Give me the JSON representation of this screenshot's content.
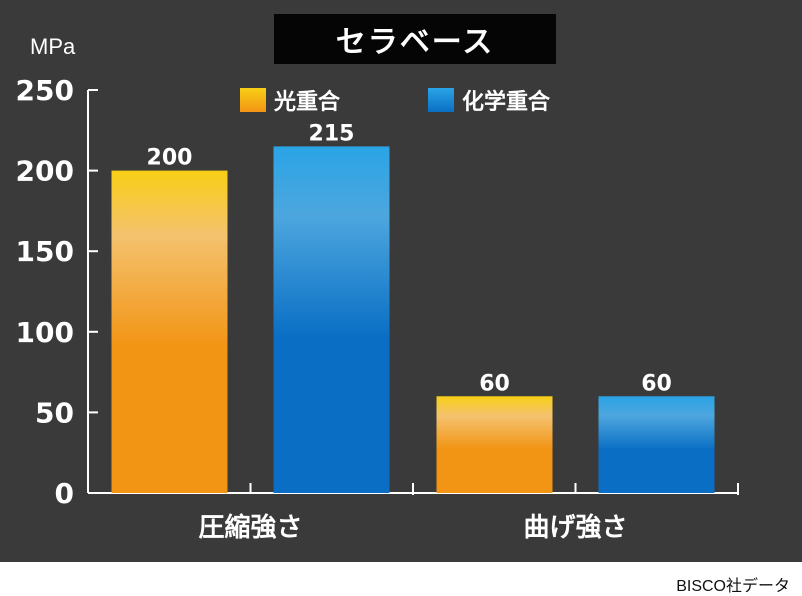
{
  "credit": "BISCO社データ",
  "colors": {
    "background": "#3a3a3a",
    "axis": "#ffffff",
    "orange_top": "#f8cf16",
    "orange_mid": "#f4c26e",
    "orange_main": "#f29414",
    "blue_top": "#2aa4e6",
    "blue_mid": "#4da6de",
    "blue_main": "#0a6fc4"
  },
  "chart_data": {
    "type": "bar",
    "title": "セラベース",
    "ylabel": "MPa",
    "xlabel": "",
    "ylim": [
      0,
      250
    ],
    "yticks": [
      "0",
      "50",
      "100",
      "150",
      "200",
      "250"
    ],
    "categories": [
      "圧縮強さ",
      "曲げ強さ"
    ],
    "legend_position": "top",
    "series": [
      {
        "name": "光重合",
        "values": [
          200,
          60
        ],
        "value_labels": [
          "200",
          "60"
        ],
        "color": "orange"
      },
      {
        "name": "化学重合",
        "values": [
          215,
          60
        ],
        "value_labels": [
          "215",
          "60"
        ],
        "color": "blue"
      }
    ]
  }
}
